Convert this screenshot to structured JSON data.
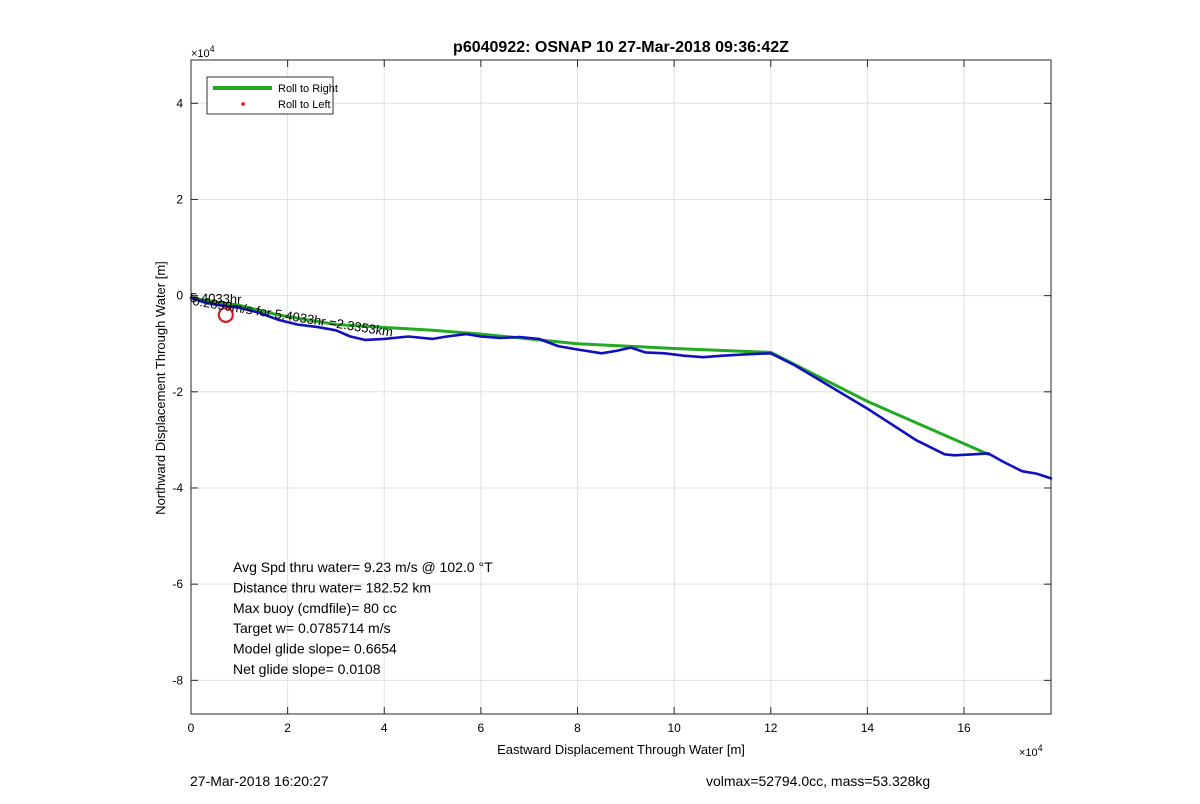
{
  "chart_data": {
    "type": "line",
    "title": "p6040922: OSNAP 10 27-Mar-2018 09:36:42Z",
    "xlabel": "Eastward Displacement Through Water [m]",
    "ylabel": "Northward Displacement Through Water [m]",
    "x_exponent_label": "×10",
    "x_exponent_power": "4",
    "y_exponent_label": "×10",
    "y_exponent_power": "4",
    "xlim": [
      0,
      17.8
    ],
    "ylim": [
      -8.7,
      4.9
    ],
    "xticks": [
      0,
      2,
      4,
      6,
      8,
      10,
      12,
      14,
      16
    ],
    "xtick_labels": [
      "0",
      "2",
      "4",
      "6",
      "8",
      "10",
      "12",
      "14",
      "16"
    ],
    "yticks": [
      -8,
      -6,
      -4,
      -2,
      0,
      2,
      4
    ],
    "ytick_labels": [
      "-8",
      "-6",
      "-4",
      "-2",
      "0",
      "2",
      "4"
    ],
    "grid": true,
    "legend_position": "top-left",
    "legend": [
      {
        "label": "Roll to Right",
        "color": "#22aa22",
        "style": "line"
      },
      {
        "label": "Roll to Left",
        "color": "#ff0000",
        "style": "dot"
      }
    ],
    "series": [
      {
        "name": "Roll to Right",
        "color": "#22aa22",
        "x": [
          0,
          1.0,
          1.8,
          3.0,
          5.0,
          6.0,
          8.0,
          10.0,
          12.0,
          14.0,
          16.5
        ],
        "y": [
          -0.05,
          -0.2,
          -0.4,
          -0.6,
          -0.72,
          -0.8,
          -1.0,
          -1.1,
          -1.18,
          -2.2,
          -3.3
        ]
      },
      {
        "name": "",
        "color": "#1010c0",
        "x": [
          0,
          0.3,
          0.6,
          1.0,
          1.4,
          1.8,
          2.2,
          2.6,
          3.0,
          3.3,
          3.6,
          4.0,
          4.5,
          5.0,
          5.3,
          5.7,
          6.0,
          6.4,
          6.8,
          7.2,
          7.6,
          8.0,
          8.5,
          8.8,
          9.1,
          9.4,
          9.8,
          10.2,
          10.6,
          11.0,
          11.5,
          12.0,
          12.5,
          13.0,
          14.0,
          15.0,
          15.6,
          15.8,
          16.2,
          16.5,
          16.8,
          17.2,
          17.5,
          17.8
        ],
        "y": [
          -0.05,
          -0.15,
          -0.2,
          -0.25,
          -0.35,
          -0.5,
          -0.6,
          -0.65,
          -0.72,
          -0.85,
          -0.92,
          -0.9,
          -0.85,
          -0.9,
          -0.85,
          -0.8,
          -0.85,
          -0.88,
          -0.86,
          -0.9,
          -1.05,
          -1.12,
          -1.2,
          -1.15,
          -1.08,
          -1.18,
          -1.2,
          -1.25,
          -1.28,
          -1.25,
          -1.22,
          -1.2,
          -1.45,
          -1.75,
          -2.35,
          -3.0,
          -3.3,
          -3.32,
          -3.3,
          -3.28,
          -3.45,
          -3.65,
          -3.7,
          -3.8
        ]
      }
    ],
    "start_marker": {
      "x": 0.72,
      "y": -0.4,
      "color": "#cc2222"
    },
    "track_annotation": "0.2899m/s for 5.4033hr =2.3353km",
    "track_annotation_overlap": "5.4033hr",
    "stats": [
      "Avg Spd thru water=  9.23 m/s @ 102.0 °T",
      "Distance thru water= 182.52 km",
      "Max buoy (cmdfile)= 80 cc",
      "Target w= 0.0785714 m/s",
      "Model glide slope= 0.6654",
      "Net glide slope= 0.0108"
    ]
  },
  "footer": {
    "timestamp": "27-Mar-2018 16:20:27",
    "mass_info": "volmax=52794.0cc, mass=53.328kg"
  }
}
